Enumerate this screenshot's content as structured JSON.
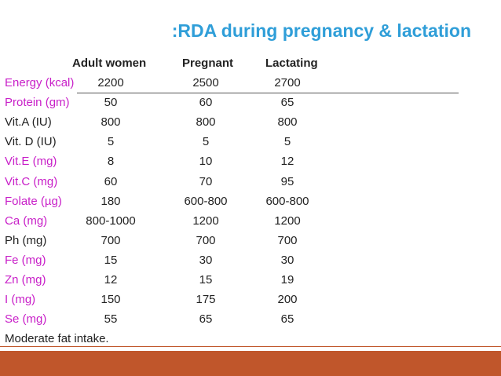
{
  "title": ":RDA during pregnancy & lactation",
  "headers": {
    "adult_women": "Adult women",
    "pregnant": "Pregnant",
    "lactating": "Lactating"
  },
  "rows": [
    {
      "label": "Energy (kcal)",
      "adult": "2200",
      "pregnant": "2500",
      "lactating": "2700",
      "color": "#c81fc8"
    },
    {
      "label": "Protein (gm)",
      "adult": "50",
      "pregnant": "60",
      "lactating": "65",
      "color": "#c81fc8"
    },
    {
      "label": "Vit.A (IU)",
      "adult": "800",
      "pregnant": "800",
      "lactating": "800",
      "color": "#222222"
    },
    {
      "label": "Vit. D (IU)",
      "adult": "5",
      "pregnant": "5",
      "lactating": "5",
      "color": "#222222"
    },
    {
      "label": "Vit.E (mg)",
      "adult": "8",
      "pregnant": "10",
      "lactating": "12",
      "color": "#c81fc8"
    },
    {
      "label": "Vit.C (mg)",
      "adult": "60",
      "pregnant": "70",
      "lactating": "95",
      "color": "#c81fc8"
    },
    {
      "label": "Folate (µg)",
      "adult": "180",
      "pregnant": "600-800",
      "lactating": "600-800",
      "color": "#c81fc8"
    },
    {
      "label": "Ca (mg)",
      "adult": "800-1000",
      "pregnant": "1200",
      "lactating": "1200",
      "color": "#c81fc8"
    },
    {
      "label": "Ph (mg)",
      "adult": "700",
      "pregnant": "700",
      "lactating": "700",
      "color": "#222222"
    },
    {
      "label": "Fe (mg)",
      "adult": "15",
      "pregnant": "30",
      "lactating": "30",
      "color": "#c81fc8"
    },
    {
      "label": "Zn (mg)",
      "adult": "12",
      "pregnant": "15",
      "lactating": "19",
      "color": "#c81fc8"
    },
    {
      "label": "I (mg)",
      "adult": "150",
      "pregnant": "175",
      "lactating": "200",
      "color": "#c81fc8"
    },
    {
      "label": "Se (mg)",
      "adult": "55",
      "pregnant": "65",
      "lactating": "65",
      "color": "#c81fc8"
    }
  ],
  "footer": "Moderate fat intake.",
  "colors": {
    "title": "#2f9ed8",
    "accent_bar": "#c0562b",
    "magenta_label": "#c81fc8",
    "text": "#222222"
  }
}
